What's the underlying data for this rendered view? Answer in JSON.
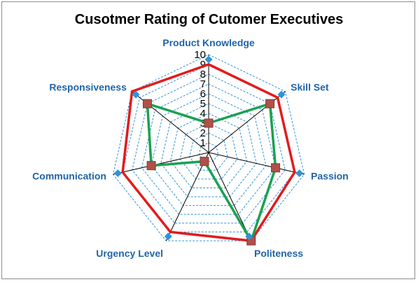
{
  "chart_data": {
    "type": "radar",
    "title": "Cusotmer Rating of Cutomer Executives",
    "categories": [
      "Product Knowledge",
      "Skill Set",
      "Passion",
      "Politeness",
      "Urgency Level",
      "Communication",
      "Responsiveness"
    ],
    "rlim": [
      0,
      10
    ],
    "ticks": [
      "1",
      "2",
      "3",
      "4",
      "5",
      "6",
      "7",
      "8",
      "9",
      "10"
    ],
    "grid": true,
    "legend": "none",
    "series": [
      {
        "values": [
          9,
          9,
          9,
          10,
          9,
          9,
          10
        ],
        "color": "#e31a1c",
        "marker": "none"
      },
      {
        "values": [
          3,
          8,
          7,
          10,
          1,
          6,
          8
        ],
        "color": "#1aa150",
        "marker": "square",
        "marker_color": "#b0504a"
      },
      {
        "values": [
          9.5,
          9.5,
          9.5,
          9.5,
          9.5,
          9.5,
          9.5
        ],
        "color": "none",
        "marker": "diamond",
        "marker_color": "#2f94d8"
      }
    ],
    "colors": {
      "axis_label": "#1f64a8",
      "grid": "#2f94d8",
      "spoke": "#000000"
    }
  }
}
